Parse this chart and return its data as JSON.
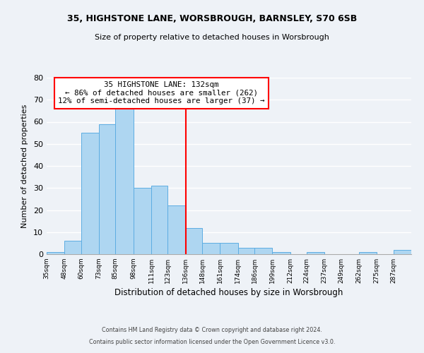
{
  "title_line1": "35, HIGHSTONE LANE, WORSBROUGH, BARNSLEY, S70 6SB",
  "title_line2": "Size of property relative to detached houses in Worsbrough",
  "xlabel": "Distribution of detached houses by size in Worsbrough",
  "ylabel": "Number of detached properties",
  "bar_edges": [
    35,
    48,
    60,
    73,
    85,
    98,
    111,
    123,
    136,
    148,
    161,
    174,
    186,
    199,
    212,
    224,
    237,
    249,
    262,
    275,
    287,
    300
  ],
  "bar_heights": [
    1,
    6,
    55,
    59,
    67,
    30,
    31,
    22,
    12,
    5,
    5,
    3,
    3,
    1,
    0,
    1,
    0,
    0,
    1,
    0,
    2
  ],
  "bar_color": "#aed6f1",
  "bar_edgecolor": "#5dade2",
  "vline_x": 136,
  "vline_color": "red",
  "annotation_title": "35 HIGHSTONE LANE: 132sqm",
  "annotation_line1": "← 86% of detached houses are smaller (262)",
  "annotation_line2": "12% of semi-detached houses are larger (37) →",
  "annotation_box_edgecolor": "red",
  "annotation_box_facecolor": "white",
  "xlim": [
    35,
    300
  ],
  "ylim": [
    0,
    80
  ],
  "yticks": [
    0,
    10,
    20,
    30,
    40,
    50,
    60,
    70,
    80
  ],
  "xtick_labels": [
    "35sqm",
    "48sqm",
    "60sqm",
    "73sqm",
    "85sqm",
    "98sqm",
    "111sqm",
    "123sqm",
    "136sqm",
    "148sqm",
    "161sqm",
    "174sqm",
    "186sqm",
    "199sqm",
    "212sqm",
    "224sqm",
    "237sqm",
    "249sqm",
    "262sqm",
    "275sqm",
    "287sqm"
  ],
  "xtick_positions": [
    35,
    48,
    60,
    73,
    85,
    98,
    111,
    123,
    136,
    148,
    161,
    174,
    186,
    199,
    212,
    224,
    237,
    249,
    262,
    275,
    287
  ],
  "footer_line1": "Contains HM Land Registry data © Crown copyright and database right 2024.",
  "footer_line2": "Contains public sector information licensed under the Open Government Licence v3.0.",
  "background_color": "#eef2f7"
}
